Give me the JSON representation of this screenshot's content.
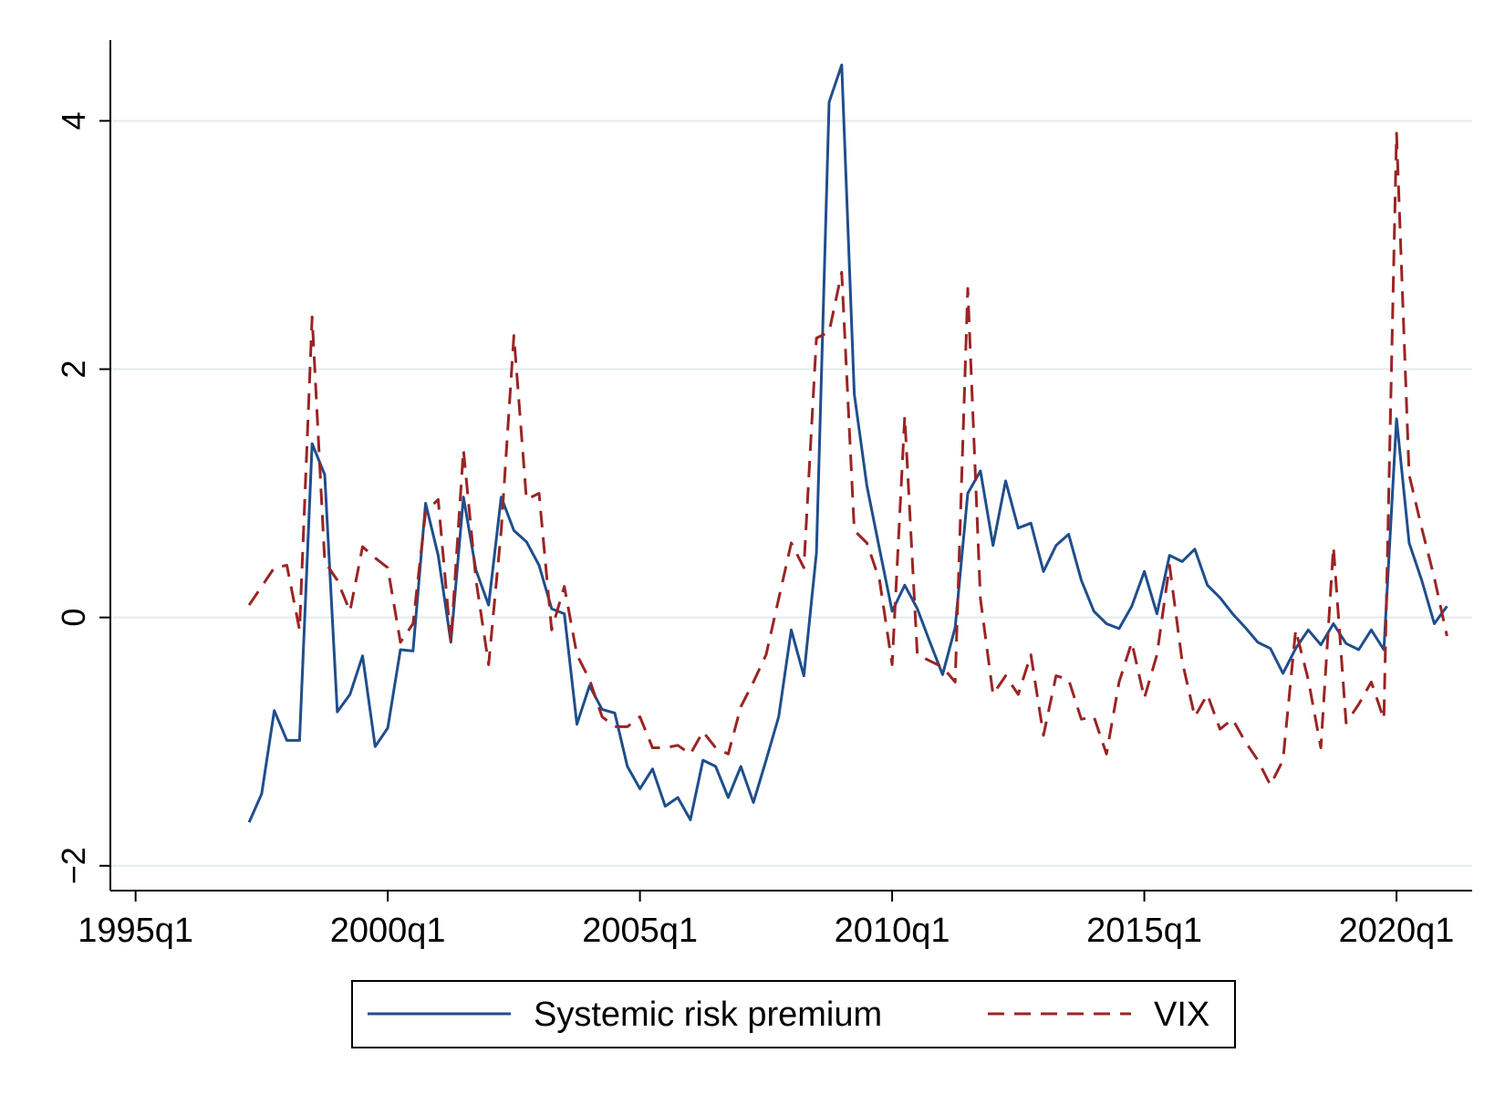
{
  "chart_data": {
    "type": "line",
    "title": "",
    "xlabel": "",
    "ylabel": "",
    "x_start": "1997q2",
    "x_step": "quarter",
    "x_tick_labels": [
      "1995q1",
      "2000q1",
      "2005q1",
      "2010q1",
      "2015q1",
      "2020q1"
    ],
    "x_tick_positions": [
      0,
      20,
      40,
      60,
      80,
      100
    ],
    "xlim": [
      -2,
      106
    ],
    "y_tick_labels": [
      "−2",
      "0",
      "2",
      "4"
    ],
    "y_tick_values": [
      -2,
      0,
      2,
      4
    ],
    "ylim": [
      -2.2,
      4.65
    ],
    "grid": true,
    "legend_position": "bottom",
    "series": [
      {
        "name": "Systemic risk premium",
        "color": "#1f4e8c",
        "style": "solid",
        "values": [
          -1.65,
          -1.42,
          -0.75,
          -0.99,
          -0.99,
          1.4,
          1.15,
          -0.76,
          -0.62,
          -0.31,
          -1.04,
          -0.89,
          -0.26,
          -0.27,
          0.92,
          0.5,
          -0.2,
          0.97,
          0.38,
          0.1,
          0.97,
          0.7,
          0.61,
          0.42,
          0.07,
          0.03,
          -0.86,
          -0.55,
          -0.74,
          -0.77,
          -1.2,
          -1.38,
          -1.22,
          -1.52,
          -1.45,
          -1.63,
          -1.15,
          -1.2,
          -1.45,
          -1.2,
          -1.49,
          -1.15,
          -0.8,
          -0.1,
          -0.47,
          0.52,
          4.15,
          4.45,
          1.8,
          1.06,
          0.55,
          0.05,
          0.26,
          0.07,
          -0.2,
          -0.46,
          -0.08,
          1.0,
          1.18,
          0.58,
          1.1,
          0.72,
          0.76,
          0.37,
          0.58,
          0.67,
          0.3,
          0.05,
          -0.05,
          -0.09,
          0.09,
          0.37,
          0.03,
          0.5,
          0.45,
          0.55,
          0.26,
          0.16,
          0.03,
          -0.08,
          -0.2,
          -0.25,
          -0.45,
          -0.25,
          -0.1,
          -0.22,
          -0.05,
          -0.21,
          -0.26,
          -0.1,
          -0.26,
          1.6,
          0.6,
          0.3,
          -0.05,
          0.09
        ]
      },
      {
        "name": "VIX",
        "color": "#9b2424",
        "style": "dashed",
        "values": [
          0.1,
          0.25,
          0.4,
          0.42,
          -0.1,
          2.42,
          0.45,
          0.3,
          0.05,
          0.57,
          0.48,
          0.4,
          -0.2,
          -0.05,
          0.85,
          0.95,
          -0.2,
          1.35,
          0.3,
          -0.38,
          0.7,
          2.27,
          0.95,
          1.0,
          -0.1,
          0.25,
          -0.3,
          -0.5,
          -0.8,
          -0.88,
          -0.88,
          -0.8,
          -1.05,
          -1.05,
          -1.03,
          -1.1,
          -0.92,
          -1.05,
          -1.1,
          -0.72,
          -0.52,
          -0.3,
          0.15,
          0.6,
          0.4,
          2.25,
          2.3,
          2.78,
          0.7,
          0.6,
          0.3,
          -0.38,
          1.62,
          -0.3,
          -0.35,
          -0.4,
          -0.52,
          2.65,
          0.15,
          -0.62,
          -0.47,
          -0.62,
          -0.3,
          -0.95,
          -0.47,
          -0.5,
          -0.82,
          -0.8,
          -1.1,
          -0.52,
          -0.2,
          -0.65,
          -0.3,
          0.42,
          -0.35,
          -0.8,
          -0.62,
          -0.9,
          -0.82,
          -1.0,
          -1.15,
          -1.35,
          -1.15,
          -0.1,
          -0.5,
          -1.05,
          0.57,
          -0.85,
          -0.7,
          -0.52,
          -0.82,
          3.9,
          1.15,
          0.72,
          0.32,
          -0.15
        ]
      }
    ]
  }
}
